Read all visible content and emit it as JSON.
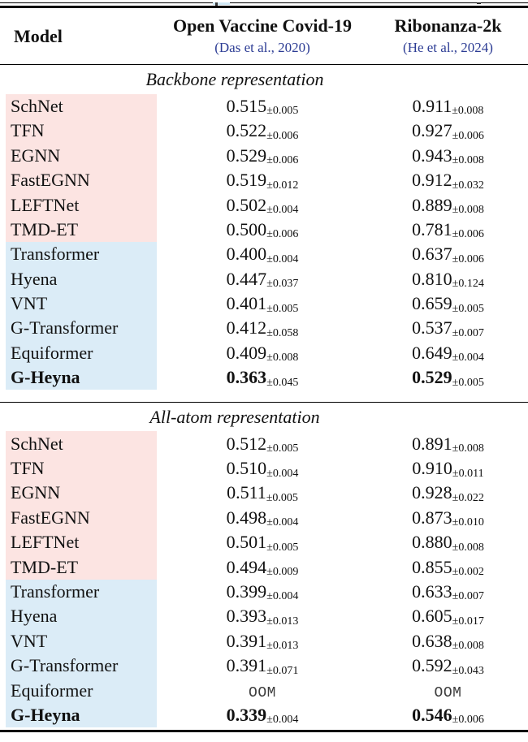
{
  "colors": {
    "pink_band": "#fce4e2",
    "blue_band": "#dbecf7",
    "citation_blue": "#2c3c94",
    "rule_black": "#000000",
    "oom_gray": "#3c3c3c",
    "top_fragment_blue": "#cfe7f5"
  },
  "header": {
    "model_label": "Model",
    "datasets": [
      {
        "title": "Open Vaccine Covid-19",
        "citation": "(Das et al., 2020)"
      },
      {
        "title": "Ribonanza-2k",
        "citation": "(He et al., 2024)"
      }
    ]
  },
  "sections": [
    {
      "label": "Backbone representation",
      "rows": [
        {
          "model": "SchNet",
          "group": "pink",
          "bold": false,
          "cells": [
            {
              "value": "0.515",
              "std": "±0.005"
            },
            {
              "value": "0.911",
              "std": "±0.008"
            }
          ]
        },
        {
          "model": "TFN",
          "group": "pink",
          "bold": false,
          "cells": [
            {
              "value": "0.522",
              "std": "±0.006"
            },
            {
              "value": "0.927",
              "std": "±0.006"
            }
          ]
        },
        {
          "model": "EGNN",
          "group": "pink",
          "bold": false,
          "cells": [
            {
              "value": "0.529",
              "std": "±0.006"
            },
            {
              "value": "0.943",
              "std": "±0.008"
            }
          ]
        },
        {
          "model": "FastEGNN",
          "group": "pink",
          "bold": false,
          "cells": [
            {
              "value": "0.519",
              "std": "±0.012"
            },
            {
              "value": "0.912",
              "std": "±0.032"
            }
          ]
        },
        {
          "model": "LEFTNet",
          "group": "pink",
          "bold": false,
          "cells": [
            {
              "value": "0.502",
              "std": "±0.004"
            },
            {
              "value": "0.889",
              "std": "±0.008"
            }
          ]
        },
        {
          "model": "TMD-ET",
          "group": "pink",
          "bold": false,
          "cells": [
            {
              "value": "0.500",
              "std": "±0.006"
            },
            {
              "value": "0.781",
              "std": "±0.006"
            }
          ]
        },
        {
          "model": "Transformer",
          "group": "blue",
          "bold": false,
          "cells": [
            {
              "value": "0.400",
              "std": "±0.004"
            },
            {
              "value": "0.637",
              "std": "±0.006"
            }
          ]
        },
        {
          "model": "Hyena",
          "group": "blue",
          "bold": false,
          "cells": [
            {
              "value": "0.447",
              "std": "±0.037"
            },
            {
              "value": "0.810",
              "std": "±0.124"
            }
          ]
        },
        {
          "model": "VNT",
          "group": "blue",
          "bold": false,
          "cells": [
            {
              "value": "0.401",
              "std": "±0.005"
            },
            {
              "value": "0.659",
              "std": "±0.005"
            }
          ]
        },
        {
          "model": "G-Transformer",
          "group": "blue",
          "bold": false,
          "cells": [
            {
              "value": "0.412",
              "std": "±0.058"
            },
            {
              "value": "0.537",
              "std": "±0.007"
            }
          ]
        },
        {
          "model": "Equiformer",
          "group": "blue",
          "bold": false,
          "cells": [
            {
              "value": "0.409",
              "std": "±0.008"
            },
            {
              "value": "0.649",
              "std": "±0.004"
            }
          ]
        },
        {
          "model": "G-Heyna",
          "group": "blue",
          "bold": true,
          "cells": [
            {
              "value": "0.363",
              "std": "±0.045"
            },
            {
              "value": "0.529",
              "std": "±0.005"
            }
          ]
        }
      ]
    },
    {
      "label": "All-atom representation",
      "rows": [
        {
          "model": "SchNet",
          "group": "pink",
          "bold": false,
          "cells": [
            {
              "value": "0.512",
              "std": "±0.005"
            },
            {
              "value": "0.891",
              "std": "±0.008"
            }
          ]
        },
        {
          "model": "TFN",
          "group": "pink",
          "bold": false,
          "cells": [
            {
              "value": "0.510",
              "std": "±0.004"
            },
            {
              "value": "0.910",
              "std": "±0.011"
            }
          ]
        },
        {
          "model": "EGNN",
          "group": "pink",
          "bold": false,
          "cells": [
            {
              "value": "0.511",
              "std": "±0.005"
            },
            {
              "value": "0.928",
              "std": "±0.022"
            }
          ]
        },
        {
          "model": "FastEGNN",
          "group": "pink",
          "bold": false,
          "cells": [
            {
              "value": "0.498",
              "std": "±0.004"
            },
            {
              "value": "0.873",
              "std": "±0.010"
            }
          ]
        },
        {
          "model": "LEFTNet",
          "group": "pink",
          "bold": false,
          "cells": [
            {
              "value": "0.501",
              "std": "±0.005"
            },
            {
              "value": "0.880",
              "std": "±0.008"
            }
          ]
        },
        {
          "model": "TMD-ET",
          "group": "pink",
          "bold": false,
          "cells": [
            {
              "value": "0.494",
              "std": "±0.009"
            },
            {
              "value": "0.855",
              "std": "±0.002"
            }
          ]
        },
        {
          "model": "Transformer",
          "group": "blue",
          "bold": false,
          "cells": [
            {
              "value": "0.399",
              "std": "±0.004"
            },
            {
              "value": "0.633",
              "std": "±0.007"
            }
          ]
        },
        {
          "model": "Hyena",
          "group": "blue",
          "bold": false,
          "cells": [
            {
              "value": "0.393",
              "std": "±0.013"
            },
            {
              "value": "0.605",
              "std": "±0.017"
            }
          ]
        },
        {
          "model": "VNT",
          "group": "blue",
          "bold": false,
          "cells": [
            {
              "value": "0.391",
              "std": "±0.013"
            },
            {
              "value": "0.638",
              "std": "±0.008"
            }
          ]
        },
        {
          "model": "G-Transformer",
          "group": "blue",
          "bold": false,
          "cells": [
            {
              "value": "0.391",
              "std": "±0.071"
            },
            {
              "value": "0.592",
              "std": "±0.043"
            }
          ]
        },
        {
          "model": "Equiformer",
          "group": "blue",
          "bold": false,
          "cells": [
            {
              "value": "OOM",
              "std": "",
              "oom": true
            },
            {
              "value": "OOM",
              "std": "",
              "oom": true
            }
          ]
        },
        {
          "model": "G-Heyna",
          "group": "blue",
          "bold": true,
          "cells": [
            {
              "value": "0.339",
              "std": "±0.004"
            },
            {
              "value": "0.546",
              "std": "±0.006"
            }
          ]
        }
      ]
    }
  ]
}
